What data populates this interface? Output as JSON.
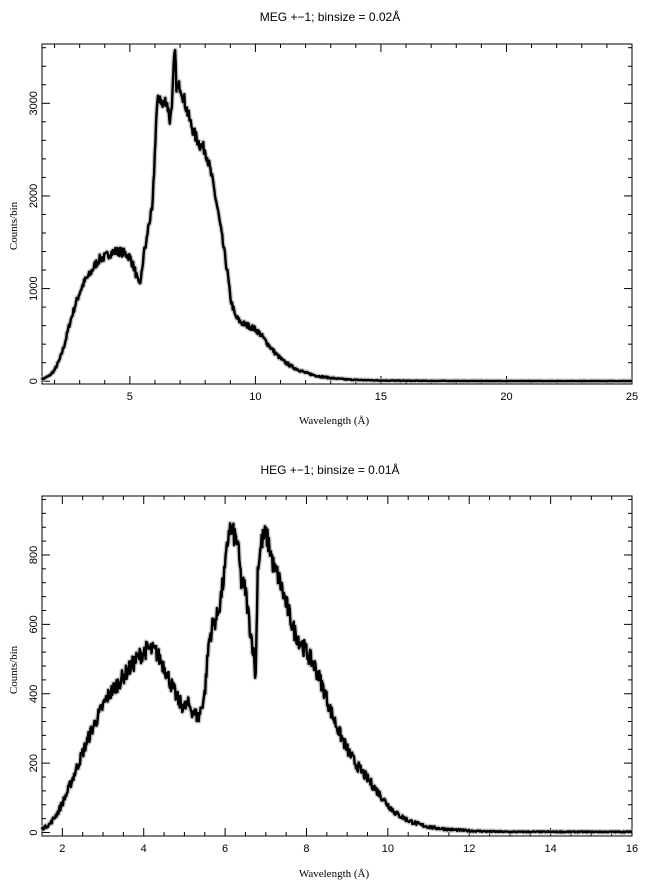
{
  "chart_data": [
    {
      "id": "meg",
      "type": "line",
      "title": "MEG +−1; binsize = 0.02Å",
      "xlabel": "Wavelength (Å)",
      "ylabel": "Counts/bin",
      "xlim": [
        1.5,
        25
      ],
      "ylim": [
        -30,
        3640
      ],
      "xticks": [
        5,
        10,
        15,
        20,
        25
      ],
      "xtick_labels": [
        "5",
        "10",
        "15",
        "20",
        "25"
      ],
      "yticks": [
        0,
        1000,
        2000,
        3000
      ],
      "ytick_labels": [
        "0",
        "1000",
        "2000",
        "3000"
      ],
      "grid": false,
      "series": [
        {
          "x": [
            1.5,
            1.8,
            2.0,
            2.2,
            2.4,
            2.6,
            2.8,
            3.0,
            3.2,
            3.4,
            3.6,
            3.8,
            4.0,
            4.2,
            4.4,
            4.6,
            4.8,
            5.0,
            5.2,
            5.35,
            5.45,
            5.55,
            5.65,
            5.75,
            5.9,
            6.0,
            6.05,
            6.1,
            6.2,
            6.3,
            6.45,
            6.55,
            6.6,
            6.7,
            6.75,
            6.8,
            6.85,
            6.9,
            7.0,
            7.2,
            7.4,
            7.6,
            7.8,
            8.0,
            8.1,
            8.3,
            8.5,
            8.7,
            8.9,
            9.0,
            9.1,
            9.2,
            9.4,
            9.6,
            9.8,
            10.0,
            10.2,
            10.5,
            10.8,
            11.1,
            11.5,
            12.0,
            12.5,
            13.0,
            13.5,
            14.0,
            15.0,
            16.0,
            18.0,
            20.0,
            22.0,
            25.0
          ],
          "values": [
            20,
            60,
            120,
            230,
            400,
            620,
            800,
            960,
            1080,
            1150,
            1250,
            1320,
            1340,
            1380,
            1400,
            1400,
            1380,
            1340,
            1200,
            1040,
            1100,
            1380,
            1480,
            1700,
            1850,
            2500,
            2850,
            3000,
            3080,
            2950,
            3050,
            2900,
            2800,
            3100,
            3400,
            3550,
            3200,
            3150,
            3200,
            3000,
            2800,
            2650,
            2550,
            2500,
            2400,
            2150,
            1850,
            1500,
            1150,
            900,
            800,
            700,
            640,
            610,
            590,
            560,
            510,
            400,
            300,
            220,
            150,
            90,
            55,
            35,
            22,
            14,
            8,
            5,
            3,
            2,
            2,
            2
          ]
        }
      ]
    },
    {
      "id": "heg",
      "type": "line",
      "title": "HEG +−1; binsize = 0.01Å",
      "xlabel": "Wavelength (Å)",
      "ylabel": "Counts/bin",
      "xlim": [
        1.5,
        16
      ],
      "ylim": [
        -10,
        970
      ],
      "xticks": [
        2,
        4,
        6,
        8,
        10,
        12,
        14,
        16
      ],
      "xtick_labels": [
        "2",
        "4",
        "6",
        "8",
        "10",
        "12",
        "14",
        "16"
      ],
      "yticks": [
        0,
        200,
        400,
        600,
        800
      ],
      "ytick_labels": [
        "0",
        "200",
        "400",
        "600",
        "800"
      ],
      "grid": false,
      "series": [
        {
          "x": [
            1.5,
            1.7,
            1.9,
            2.1,
            2.3,
            2.5,
            2.7,
            2.9,
            3.1,
            3.3,
            3.5,
            3.7,
            3.9,
            4.1,
            4.3,
            4.5,
            4.7,
            4.85,
            5.0,
            5.1,
            5.2,
            5.35,
            5.5,
            5.6,
            5.7,
            5.8,
            5.9,
            6.0,
            6.05,
            6.1,
            6.2,
            6.3,
            6.4,
            6.5,
            6.6,
            6.65,
            6.7,
            6.75,
            6.8,
            6.9,
            7.0,
            7.1,
            7.2,
            7.3,
            7.4,
            7.5,
            7.6,
            7.7,
            7.8,
            8.0,
            8.2,
            8.4,
            8.6,
            8.8,
            9.0,
            9.2,
            9.4,
            9.6,
            9.8,
            10.0,
            10.2,
            10.5,
            10.8,
            11.1,
            11.5,
            12.0,
            12.5,
            13.0,
            14.0,
            15.0,
            16.0
          ],
          "values": [
            10,
            25,
            60,
            110,
            170,
            230,
            290,
            340,
            390,
            420,
            450,
            480,
            510,
            530,
            520,
            480,
            420,
            380,
            360,
            370,
            350,
            330,
            400,
            550,
            600,
            620,
            680,
            760,
            820,
            880,
            860,
            840,
            720,
            700,
            600,
            560,
            520,
            440,
            760,
            840,
            860,
            820,
            760,
            740,
            700,
            660,
            620,
            580,
            560,
            520,
            480,
            420,
            350,
            290,
            240,
            200,
            170,
            140,
            110,
            80,
            55,
            35,
            22,
            14,
            9,
            5,
            3,
            2,
            2,
            2,
            2
          ]
        }
      ]
    }
  ]
}
